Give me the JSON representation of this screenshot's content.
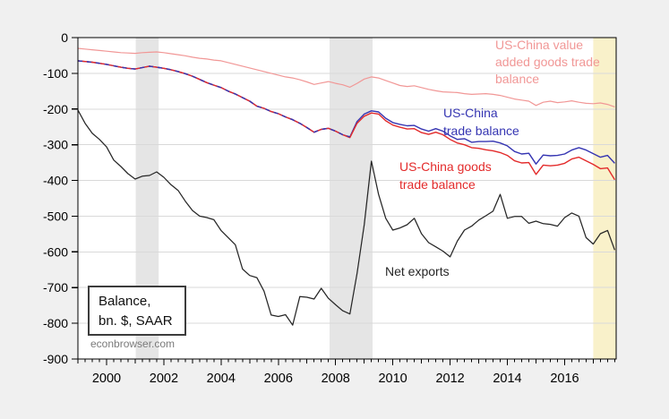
{
  "watermark": "econbrowser.com",
  "legend_box": {
    "line1": "Balance,",
    "line2": "bn. $, SAAR"
  },
  "colors": {
    "background": "#f0f0f0",
    "plot_background": "#ffffff",
    "grid": "#d9d9d9",
    "axis": "#000000",
    "recession_band": "#e5e5e5",
    "highlight_band": "#f9f1ca",
    "watermark_text": "#7a7a7a"
  },
  "chart_data": {
    "type": "line",
    "title": "",
    "xlabel": "",
    "ylabel": "Balance, bn. $, SAAR",
    "grid": "horizontal",
    "x_axis": {
      "range": [
        1999.0,
        2017.8
      ],
      "minor_tick_step": 0.25,
      "ticks": [
        {
          "year": 2000,
          "label": "2000"
        },
        {
          "year": 2002,
          "label": "2002"
        },
        {
          "year": 2004,
          "label": "2004"
        },
        {
          "year": 2006,
          "label": "2006"
        },
        {
          "year": 2008,
          "label": "2008"
        },
        {
          "year": 2010,
          "label": "2010"
        },
        {
          "year": 2012,
          "label": "2012"
        },
        {
          "year": 2014,
          "label": "2014"
        },
        {
          "year": 2016,
          "label": "2016"
        }
      ]
    },
    "y_axis": {
      "range": [
        -900,
        0
      ],
      "ticks": [
        {
          "value": 0,
          "label": "0"
        },
        {
          "value": -100,
          "label": "-100"
        },
        {
          "value": -200,
          "label": "-200"
        },
        {
          "value": -300,
          "label": "-300"
        },
        {
          "value": -400,
          "label": "-400"
        },
        {
          "value": -500,
          "label": "-500"
        },
        {
          "value": -600,
          "label": "-600"
        },
        {
          "value": -700,
          "label": "-700"
        },
        {
          "value": -800,
          "label": "-800"
        },
        {
          "value": -900,
          "label": "-900"
        }
      ]
    },
    "recession_bands": [
      {
        "start": 2001.02,
        "end": 2001.82
      },
      {
        "start": 2007.79,
        "end": 2009.29
      }
    ],
    "highlight_band": {
      "start": 2017.0,
      "end": 2017.8,
      "color": "#f9f1ca"
    },
    "series": [
      {
        "id": "value-added",
        "name": "US-China value added goods trade balance",
        "color": "#f19796",
        "label_lines": [
          "US-China value",
          "added goods trade",
          "balance"
        ],
        "x_start": 1999.0,
        "x_step": 0.25,
        "values": [
          -30,
          -32,
          -34,
          -36,
          -38,
          -40,
          -42,
          -43,
          -44,
          -42,
          -41,
          -40,
          -42,
          -45,
          -48,
          -51,
          -55,
          -58,
          -60,
          -63,
          -65,
          -70,
          -75,
          -80,
          -85,
          -90,
          -95,
          -100,
          -105,
          -110,
          -113,
          -118,
          -124,
          -131,
          -127,
          -123,
          -128,
          -132,
          -139,
          -128,
          -116,
          -110,
          -113,
          -120,
          -127,
          -134,
          -137,
          -135,
          -140,
          -145,
          -149,
          -152,
          -153,
          -154,
          -157,
          -159,
          -158,
          -157,
          -159,
          -162,
          -167,
          -172,
          -175,
          -178,
          -190,
          -181,
          -178,
          -182,
          -180,
          -177,
          -181,
          -184,
          -185,
          -183,
          -187,
          -194
        ]
      },
      {
        "id": "trade-balance",
        "name": "US-China trade balance",
        "color": "#3535b2",
        "label_lines": [
          "US-China",
          "trade balance"
        ],
        "x_start": 1999.0,
        "x_step": 0.25,
        "values": [
          -65,
          -67,
          -69,
          -72,
          -75,
          -79,
          -83,
          -86,
          -88,
          -84,
          -80,
          -83,
          -86,
          -90,
          -95,
          -101,
          -108,
          -117,
          -126,
          -133,
          -140,
          -150,
          -158,
          -168,
          -178,
          -192,
          -198,
          -207,
          -213,
          -222,
          -230,
          -240,
          -252,
          -265,
          -257,
          -254,
          -262,
          -272,
          -278,
          -235,
          -214,
          -205,
          -208,
          -226,
          -238,
          -243,
          -247,
          -246,
          -256,
          -262,
          -255,
          -262,
          -275,
          -285,
          -283,
          -293,
          -291,
          -291,
          -290,
          -295,
          -303,
          -319,
          -326,
          -324,
          -354,
          -329,
          -331,
          -330,
          -326,
          -315,
          -308,
          -315,
          -325,
          -335,
          -330,
          -352
        ]
      },
      {
        "id": "goods-trade-balance",
        "name": "US-China goods trade balance",
        "color": "#e32b2b",
        "label_lines": [
          "US-China goods",
          "trade balance"
        ],
        "x_start": 1999.0,
        "x_step": 0.25,
        "values": [
          -65,
          -67,
          -69,
          -72,
          -75,
          -79,
          -83,
          -86,
          -88,
          -84,
          -80,
          -83,
          -86,
          -90,
          -95,
          -101,
          -108,
          -117,
          -126,
          -133,
          -140,
          -150,
          -158,
          -168,
          -178,
          -192,
          -198,
          -207,
          -213,
          -222,
          -230,
          -240,
          -252,
          -265,
          -257,
          -254,
          -262,
          -272,
          -280,
          -240,
          -220,
          -211,
          -214,
          -233,
          -245,
          -251,
          -256,
          -255,
          -266,
          -271,
          -265,
          -272,
          -285,
          -295,
          -300,
          -308,
          -310,
          -314,
          -317,
          -322,
          -330,
          -345,
          -351,
          -350,
          -383,
          -357,
          -359,
          -357,
          -352,
          -340,
          -335,
          -345,
          -355,
          -367,
          -365,
          -398
        ]
      },
      {
        "id": "net-exports",
        "name": "Net exports",
        "color": "#262626",
        "label_lines": [
          "Net exports"
        ],
        "x_start": 1999.0,
        "x_step": 0.25,
        "values": [
          -203,
          -240,
          -268,
          -285,
          -306,
          -343,
          -361,
          -381,
          -396,
          -388,
          -386,
          -376,
          -391,
          -412,
          -428,
          -458,
          -484,
          -500,
          -504,
          -510,
          -540,
          -560,
          -580,
          -648,
          -666,
          -672,
          -710,
          -777,
          -781,
          -776,
          -805,
          -725,
          -727,
          -732,
          -702,
          -730,
          -748,
          -765,
          -774,
          -660,
          -524,
          -346,
          -439,
          -506,
          -539,
          -533,
          -524,
          -506,
          -549,
          -574,
          -586,
          -598,
          -614,
          -570,
          -539,
          -528,
          -511,
          -499,
          -486,
          -439,
          -506,
          -501,
          -501,
          -520,
          -514,
          -521,
          -523,
          -528,
          -504,
          -491,
          -500,
          -560,
          -578,
          -549,
          -540,
          -595
        ]
      }
    ],
    "overlap_note": "trade-balance and goods-trade-balance overlap (dashed red/blue) through 2008.5"
  }
}
